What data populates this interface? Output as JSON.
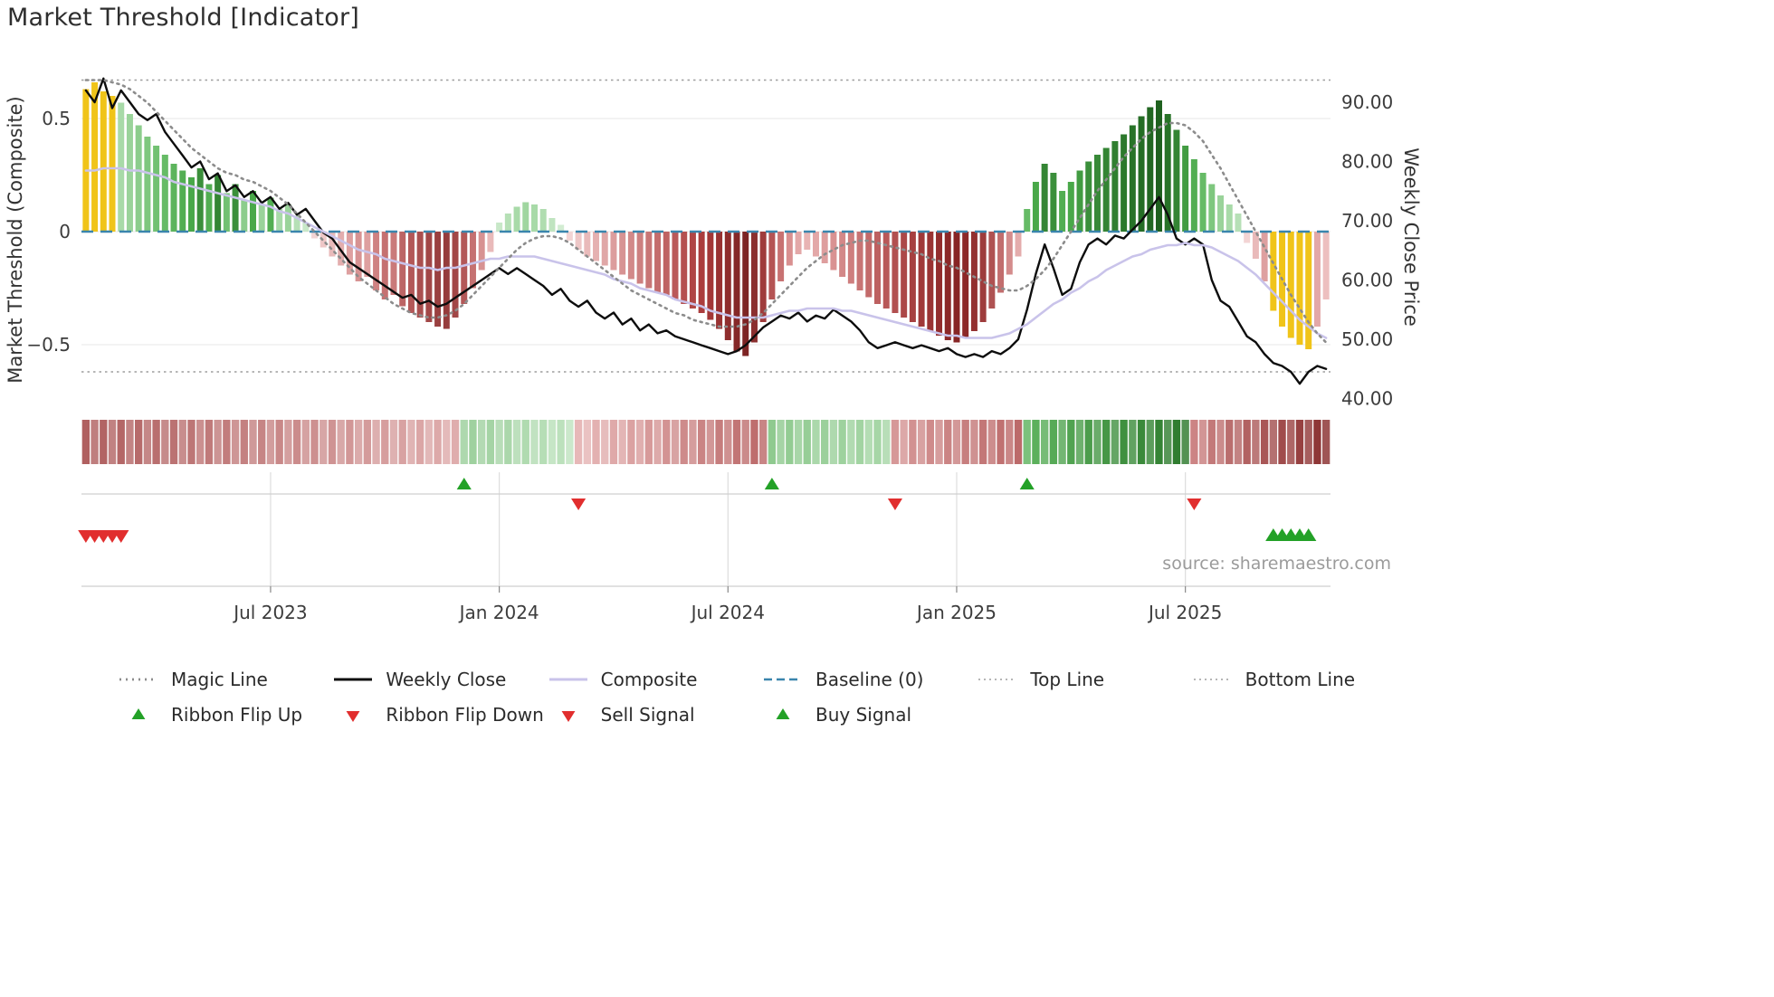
{
  "title": "Market Threshold [Indicator]",
  "source": "source: sharemaestro.com",
  "style": {
    "background": "#ffffff",
    "grid": "#ececec",
    "baseline_color": "#3a85ad",
    "top_bottom_color": "#9e9e9e",
    "magic_color": "#8c8c8c",
    "composite_color": "#c9c3ea",
    "weekly_close_color": "#0d0d0d",
    "flip_up_color": "#23a127",
    "flip_down_color": "#e12e2e",
    "buy_color": "#23a127",
    "sell_color": "#e12e2e",
    "tick_text_color": "#3c3c3c",
    "axis_title_color": "#333333",
    "panel_line_color": "#cfcfcf",
    "panel_grid_color": "#dddddd",
    "gold": "#f0c419"
  },
  "chart_data": {
    "type": "bar",
    "title": "Market Threshold [Indicator]",
    "left_axis": {
      "label": "Market Threshold (Composite)",
      "range": [
        -0.8,
        0.72
      ],
      "ticks": [
        {
          "value": 0.5,
          "label": "0.5"
        },
        {
          "value": 0,
          "label": "0"
        },
        {
          "value": -0.5,
          "label": "−0.5"
        }
      ]
    },
    "right_axis": {
      "label": "Weekly Close Price",
      "range": [
        38,
        96
      ],
      "ticks": [
        {
          "value": 90,
          "label": "90.00"
        },
        {
          "value": 80,
          "label": "80.00"
        },
        {
          "value": 70,
          "label": "70.00"
        },
        {
          "value": 60,
          "label": "60.00"
        },
        {
          "value": 50,
          "label": "50.00"
        },
        {
          "value": 40,
          "label": "40.00"
        }
      ]
    },
    "x_ticks": [
      {
        "index": 21,
        "label": "Jul 2023"
      },
      {
        "index": 47,
        "label": "Jan 2024"
      },
      {
        "index": 73,
        "label": "Jul 2024"
      },
      {
        "index": 99,
        "label": "Jan 2025"
      },
      {
        "index": 125,
        "label": "Jul 2025"
      }
    ],
    "baseline": 0,
    "top_line": 0.67,
    "bottom_line": -0.62,
    "bars": {
      "name": "Market Threshold (Composite) histogram",
      "values": [
        0.63,
        0.66,
        0.62,
        0.6,
        0.57,
        0.52,
        0.47,
        0.42,
        0.38,
        0.34,
        0.3,
        0.27,
        0.24,
        0.28,
        0.21,
        0.25,
        0.17,
        0.21,
        0.14,
        0.18,
        0.12,
        0.15,
        0.1,
        0.12,
        0.07,
        0.04,
        -0.03,
        -0.07,
        -0.11,
        -0.15,
        -0.19,
        -0.22,
        -0.2,
        -0.26,
        -0.3,
        -0.28,
        -0.33,
        -0.36,
        -0.38,
        -0.4,
        -0.42,
        -0.43,
        -0.38,
        -0.32,
        -0.25,
        -0.17,
        -0.09,
        0.04,
        0.08,
        0.11,
        0.13,
        0.12,
        0.1,
        0.06,
        0.03,
        -0.04,
        -0.08,
        -0.11,
        -0.13,
        -0.15,
        -0.17,
        -0.19,
        -0.21,
        -0.23,
        -0.25,
        -0.27,
        -0.28,
        -0.3,
        -0.32,
        -0.34,
        -0.36,
        -0.39,
        -0.43,
        -0.48,
        -0.53,
        -0.55,
        -0.49,
        -0.4,
        -0.3,
        -0.22,
        -0.15,
        -0.1,
        -0.08,
        -0.11,
        -0.14,
        -0.17,
        -0.2,
        -0.23,
        -0.26,
        -0.29,
        -0.32,
        -0.34,
        -0.36,
        -0.38,
        -0.4,
        -0.42,
        -0.44,
        -0.46,
        -0.48,
        -0.49,
        -0.47,
        -0.44,
        -0.4,
        -0.34,
        -0.27,
        -0.19,
        -0.11,
        0.1,
        0.22,
        0.3,
        0.26,
        0.18,
        0.22,
        0.27,
        0.31,
        0.34,
        0.37,
        0.4,
        0.43,
        0.47,
        0.51,
        0.55,
        0.58,
        0.52,
        0.45,
        0.38,
        0.32,
        0.26,
        0.21,
        0.16,
        0.12,
        0.08,
        -0.05,
        -0.12,
        -0.22,
        -0.35,
        -0.42,
        -0.47,
        -0.5,
        -0.52,
        -0.42,
        -0.3
      ],
      "colors": [
        "#f0c419",
        "#f0c419",
        "#f0c419",
        "#f0c419",
        "#a8daa8",
        "#9ad39a",
        "#8ccd8c",
        "#7ec77e",
        "#72c172",
        "#66bb66",
        "#5cb45c",
        "#52ae52",
        "#49a849",
        "#3b8f3b",
        "#52ae52",
        "#348534",
        "#72c172",
        "#3b8f3b",
        "#8ccd8c",
        "#49a849",
        "#9ad39a",
        "#52ae52",
        "#a8daa8",
        "#9ad39a",
        "#b6e0b6",
        "#c8e8c8",
        "#f3d4d4",
        "#eec7c7",
        "#e9baba",
        "#e3adad",
        "#dea0a0",
        "#d79292",
        "#dea0a0",
        "#cf8282",
        "#c57171",
        "#ca7a7a",
        "#bc6565",
        "#b35858",
        "#aa4f4f",
        "#a24747",
        "#9a4040",
        "#963c3c",
        "#a24747",
        "#b35858",
        "#c57171",
        "#d79292",
        "#e9baba",
        "#c8e8c8",
        "#b6e0b6",
        "#a8daa8",
        "#a0d6a0",
        "#a8daa8",
        "#b0ddb0",
        "#c0e4c0",
        "#d2ecd2",
        "#f3d4d4",
        "#eec7c7",
        "#e9baba",
        "#e5b1b1",
        "#e0a7a7",
        "#dc9d9d",
        "#d79393",
        "#d28989",
        "#cd8080",
        "#c87676",
        "#c46c6c",
        "#bf6363",
        "#ba5959",
        "#b55050",
        "#b04646",
        "#ab3d3d",
        "#a33737",
        "#993232",
        "#8f2d2d",
        "#852828",
        "#7d2424",
        "#8b2f2f",
        "#9f3c3c",
        "#b55454",
        "#c87272",
        "#d99090",
        "#e3a8a8",
        "#e8b4b4",
        "#e3a8a8",
        "#de9e9e",
        "#d99292",
        "#d38888",
        "#ce7e7e",
        "#c87474",
        "#c36a6a",
        "#bd6060",
        "#b85858",
        "#b25050",
        "#ac4848",
        "#a64040",
        "#a03939",
        "#9a3333",
        "#932d2d",
        "#8c2828",
        "#872525",
        "#8c2828",
        "#933030",
        "#9e3c3c",
        "#af5252",
        "#c26e6e",
        "#d48c8c",
        "#e4acac",
        "#66bb66",
        "#49a849",
        "#348534",
        "#3b8f3b",
        "#52ae52",
        "#49a849",
        "#429c42",
        "#3b8f3b",
        "#388938",
        "#348534",
        "#307f30",
        "#2c792c",
        "#287328",
        "#256d25",
        "#226722",
        "#1f611f",
        "#287328",
        "#348534",
        "#429c42",
        "#52ae52",
        "#66bb66",
        "#7ec77e",
        "#9ad39a",
        "#a8daa8",
        "#b6e0b6",
        "#f3d4d4",
        "#e9baba",
        "#dea0a0",
        "#f0c419",
        "#f0c419",
        "#f0c419",
        "#f0c419",
        "#f0c419",
        "#e3a8a8",
        "#edbfbf"
      ]
    },
    "series": [
      {
        "name": "Weekly Close",
        "axis": "right",
        "style": "solid",
        "color": "#0d0d0d",
        "values": [
          92,
          90,
          94,
          89,
          92,
          90,
          88,
          87,
          88,
          85,
          83,
          81,
          79,
          80,
          77,
          78,
          75,
          76,
          74,
          75,
          73,
          74,
          72,
          73,
          71,
          72,
          70,
          68,
          67,
          65,
          63,
          62,
          61,
          60,
          59,
          58,
          57,
          57.5,
          56,
          56.5,
          55.5,
          56,
          57,
          58,
          59,
          60,
          61,
          62,
          61,
          62,
          61,
          60,
          59,
          57.5,
          58.5,
          56.5,
          55.5,
          56.5,
          54.5,
          53.5,
          54.5,
          52.5,
          53.5,
          51.5,
          52.5,
          51,
          51.5,
          50.5,
          50,
          49.5,
          49,
          48.5,
          48,
          47.5,
          48,
          49,
          50.5,
          52,
          53,
          54,
          53.5,
          54.5,
          53,
          54,
          53.5,
          55,
          54,
          53,
          51.5,
          49.5,
          48.5,
          49,
          49.5,
          49,
          48.5,
          49,
          48.5,
          48,
          48.5,
          47.5,
          47,
          47.5,
          47,
          48,
          47.5,
          48.5,
          50,
          55,
          61,
          66,
          62,
          57.5,
          58.5,
          63,
          66,
          67,
          66,
          67.5,
          67,
          68.5,
          70,
          72,
          74,
          71,
          67,
          66,
          67,
          66,
          60,
          56.5,
          55.5,
          53,
          50.5,
          49.5,
          47.5,
          46,
          45.5,
          44.5,
          42.5,
          44.5,
          45.5,
          45
        ]
      },
      {
        "name": "Composite",
        "axis": "left",
        "style": "solid",
        "color": "#c9c3ea",
        "values": [
          0.27,
          0.27,
          0.28,
          0.28,
          0.28,
          0.27,
          0.27,
          0.26,
          0.25,
          0.24,
          0.22,
          0.21,
          0.2,
          0.19,
          0.18,
          0.17,
          0.16,
          0.15,
          0.14,
          0.13,
          0.12,
          0.11,
          0.09,
          0.08,
          0.06,
          0.04,
          0.02,
          0.0,
          -0.02,
          -0.04,
          -0.06,
          -0.08,
          -0.09,
          -0.1,
          -0.12,
          -0.13,
          -0.14,
          -0.15,
          -0.16,
          -0.16,
          -0.17,
          -0.16,
          -0.16,
          -0.15,
          -0.14,
          -0.13,
          -0.12,
          -0.12,
          -0.11,
          -0.11,
          -0.11,
          -0.11,
          -0.12,
          -0.13,
          -0.14,
          -0.15,
          -0.16,
          -0.17,
          -0.18,
          -0.19,
          -0.21,
          -0.22,
          -0.23,
          -0.25,
          -0.26,
          -0.27,
          -0.28,
          -0.3,
          -0.31,
          -0.32,
          -0.33,
          -0.35,
          -0.36,
          -0.37,
          -0.38,
          -0.38,
          -0.38,
          -0.38,
          -0.37,
          -0.36,
          -0.35,
          -0.35,
          -0.34,
          -0.34,
          -0.34,
          -0.34,
          -0.35,
          -0.35,
          -0.36,
          -0.37,
          -0.38,
          -0.39,
          -0.4,
          -0.41,
          -0.42,
          -0.43,
          -0.44,
          -0.45,
          -0.46,
          -0.46,
          -0.47,
          -0.47,
          -0.47,
          -0.47,
          -0.46,
          -0.45,
          -0.43,
          -0.41,
          -0.38,
          -0.35,
          -0.32,
          -0.3,
          -0.27,
          -0.25,
          -0.22,
          -0.2,
          -0.17,
          -0.15,
          -0.13,
          -0.11,
          -0.1,
          -0.08,
          -0.07,
          -0.06,
          -0.06,
          -0.05,
          -0.06,
          -0.06,
          -0.07,
          -0.09,
          -0.11,
          -0.13,
          -0.16,
          -0.19,
          -0.23,
          -0.27,
          -0.31,
          -0.35,
          -0.39,
          -0.42,
          -0.45,
          -0.47
        ]
      },
      {
        "name": "Magic Line",
        "axis": "left",
        "style": "dotted",
        "color": "#8c8c8c",
        "values": [
          0.67,
          0.67,
          0.67,
          0.66,
          0.65,
          0.63,
          0.6,
          0.57,
          0.53,
          0.49,
          0.45,
          0.41,
          0.37,
          0.34,
          0.31,
          0.28,
          0.26,
          0.25,
          0.23,
          0.22,
          0.2,
          0.18,
          0.15,
          0.12,
          0.08,
          0.04,
          0.0,
          -0.04,
          -0.08,
          -0.12,
          -0.16,
          -0.2,
          -0.23,
          -0.26,
          -0.29,
          -0.32,
          -0.34,
          -0.36,
          -0.37,
          -0.38,
          -0.38,
          -0.37,
          -0.35,
          -0.32,
          -0.28,
          -0.24,
          -0.2,
          -0.16,
          -0.12,
          -0.08,
          -0.05,
          -0.03,
          -0.02,
          -0.02,
          -0.03,
          -0.05,
          -0.08,
          -0.11,
          -0.14,
          -0.17,
          -0.2,
          -0.23,
          -0.26,
          -0.28,
          -0.3,
          -0.32,
          -0.34,
          -0.36,
          -0.37,
          -0.39,
          -0.4,
          -0.41,
          -0.42,
          -0.42,
          -0.42,
          -0.41,
          -0.39,
          -0.36,
          -0.32,
          -0.28,
          -0.24,
          -0.2,
          -0.16,
          -0.13,
          -0.1,
          -0.08,
          -0.06,
          -0.05,
          -0.04,
          -0.04,
          -0.05,
          -0.06,
          -0.07,
          -0.08,
          -0.09,
          -0.1,
          -0.12,
          -0.13,
          -0.15,
          -0.16,
          -0.18,
          -0.2,
          -0.22,
          -0.24,
          -0.25,
          -0.26,
          -0.26,
          -0.24,
          -0.21,
          -0.17,
          -0.12,
          -0.06,
          0.0,
          0.06,
          0.12,
          0.18,
          0.23,
          0.28,
          0.33,
          0.37,
          0.41,
          0.44,
          0.46,
          0.48,
          0.48,
          0.47,
          0.44,
          0.4,
          0.34,
          0.28,
          0.21,
          0.14,
          0.07,
          0.0,
          -0.07,
          -0.14,
          -0.21,
          -0.28,
          -0.34,
          -0.4,
          -0.45,
          -0.49
        ]
      }
    ],
    "ribbon": {
      "segments": [
        {
          "start": 0,
          "end": 42,
          "from": "#b06060",
          "to": "#dfadad"
        },
        {
          "start": 43,
          "end": 55,
          "from": "#9ccf9c",
          "to": "#bfe3bf"
        },
        {
          "start": 56,
          "end": 77,
          "from": "#e7b8b8",
          "to": "#bc6a6a"
        },
        {
          "start": 78,
          "end": 91,
          "from": "#8fca8f",
          "to": "#a8d7a8"
        },
        {
          "start": 92,
          "end": 106,
          "from": "#d69898",
          "to": "#bc6a6a"
        },
        {
          "start": 107,
          "end": 125,
          "from": "#5fb35f",
          "to": "#2d7a2d"
        },
        {
          "start": 126,
          "end": 141,
          "from": "#cc8484",
          "to": "#8a3030"
        }
      ]
    },
    "signals": {
      "ribbon_flip_up": [
        43,
        78,
        107
      ],
      "ribbon_flip_down": [
        56,
        92,
        126
      ],
      "sell": [
        0,
        1,
        2,
        3,
        4
      ],
      "buy": [
        135,
        136,
        137,
        138,
        139
      ]
    }
  },
  "legend": {
    "items": [
      {
        "label": "Magic Line",
        "swatch": "dotted-line",
        "color": "#8c8c8c"
      },
      {
        "label": "Weekly Close",
        "swatch": "solid-line",
        "color": "#0d0d0d"
      },
      {
        "label": "Composite",
        "swatch": "solid-line",
        "color": "#c9c3ea"
      },
      {
        "label": "Baseline (0)",
        "swatch": "dashed-line",
        "color": "#3a85ad"
      },
      {
        "label": "Top Line",
        "swatch": "dotted-line-thin",
        "color": "#9e9e9e"
      },
      {
        "label": "Bottom Line",
        "swatch": "dotted-line-thin",
        "color": "#9e9e9e"
      },
      {
        "label": "Ribbon Flip Up",
        "swatch": "triangle-up",
        "color": "#23a127"
      },
      {
        "label": "Ribbon Flip Down",
        "swatch": "triangle-down",
        "color": "#e12e2e"
      },
      {
        "label": "Sell Signal",
        "swatch": "triangle-down",
        "color": "#e12e2e"
      },
      {
        "label": "Buy Signal",
        "swatch": "triangle-up",
        "color": "#23a127"
      }
    ]
  }
}
